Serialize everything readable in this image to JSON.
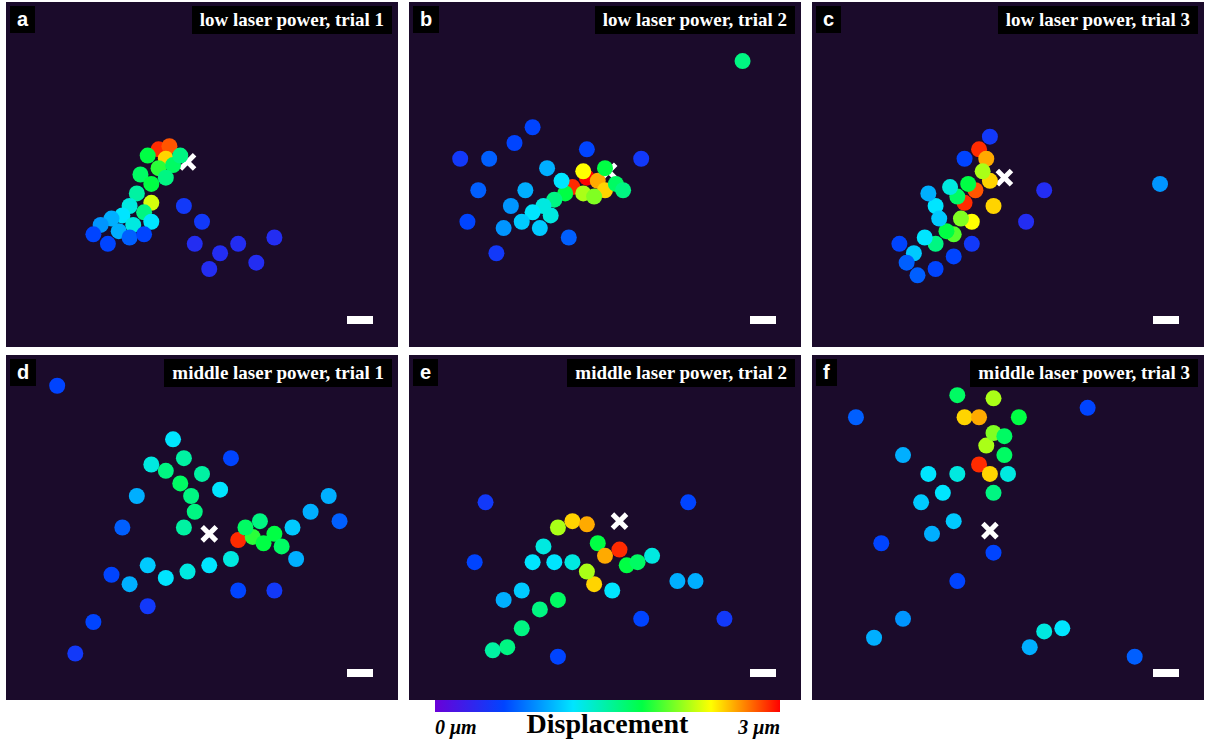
{
  "chart_data": [
    {
      "type": "scatter",
      "letter": "a",
      "title": "low laser power, trial 1",
      "marker": "circle",
      "grid": false,
      "tick_labels": false,
      "xlim": [
        0,
        100
      ],
      "ylim": [
        0,
        100
      ],
      "x": [
        38,
        41,
        40,
        36,
        35,
        38,
        42,
        44,
        33,
        36,
        40,
        32,
        34,
        30,
        28,
        31,
        36,
        25,
        22,
        27,
        20,
        24,
        30,
        34,
        45,
        50,
        55,
        60,
        65,
        70,
        48,
        52
      ],
      "y": [
        58,
        59,
        55,
        41,
        56,
        52,
        53,
        56,
        50,
        47,
        49,
        44,
        38,
        40,
        37,
        34,
        35,
        36,
        34,
        32,
        31,
        28,
        30,
        31,
        40,
        35,
        25,
        28,
        22,
        30,
        28,
        20
      ],
      "values": [
        2.9,
        2.8,
        2.5,
        2.3,
        1.8,
        1.9,
        1.7,
        1.6,
        1.7,
        1.8,
        1.6,
        1.5,
        1.6,
        1.3,
        1.2,
        1.3,
        1.2,
        1.0,
        0.9,
        1.0,
        0.6,
        0.6,
        0.7,
        0.6,
        0.5,
        0.5,
        0.4,
        0.4,
        0.4,
        0.4,
        0.4,
        0.4
      ],
      "laser_spot": {
        "x": 46,
        "y": 54,
        "marker": "cross"
      }
    },
    {
      "type": "scatter",
      "letter": "b",
      "title": "low laser power, trial 2",
      "marker": "circle",
      "grid": false,
      "tick_labels": false,
      "xlim": [
        0,
        100
      ],
      "ylim": [
        0,
        100
      ],
      "x": [
        45,
        41,
        48,
        50,
        44,
        44,
        47,
        39,
        50,
        53,
        55,
        36,
        88,
        33,
        30,
        35,
        27,
        32,
        38,
        34,
        28,
        24,
        22,
        15,
        18,
        25,
        12,
        40,
        45,
        30,
        20,
        60,
        10
      ],
      "y": [
        49,
        46,
        48,
        45,
        51,
        44,
        43,
        44,
        52,
        47,
        45,
        42,
        86,
        40,
        38,
        37,
        35,
        33,
        48,
        52,
        45,
        40,
        33,
        45,
        55,
        60,
        35,
        30,
        58,
        65,
        25,
        55,
        55
      ],
      "values": [
        3.0,
        2.9,
        2.6,
        2.5,
        2.4,
        2.2,
        2.1,
        1.8,
        1.8,
        1.7,
        1.6,
        1.6,
        1.6,
        1.3,
        1.2,
        1.3,
        1.1,
        1.1,
        1.2,
        1.0,
        1.0,
        0.9,
        0.9,
        0.7,
        0.7,
        0.6,
        0.6,
        0.7,
        0.6,
        0.6,
        0.5,
        0.5,
        0.5
      ],
      "laser_spot": {
        "x": 51,
        "y": 51,
        "marker": "cross"
      }
    },
    {
      "type": "scatter",
      "letter": "c",
      "title": "low laser power, trial 3",
      "marker": "circle",
      "grid": false,
      "tick_labels": false,
      "xlim": [
        0,
        100
      ],
      "ylim": [
        0,
        100
      ],
      "x": [
        42,
        38,
        41,
        44,
        45,
        46,
        40,
        43,
        37,
        35,
        39,
        36,
        33,
        30,
        34,
        30,
        27,
        24,
        31,
        28,
        22,
        25,
        30,
        20,
        35,
        40,
        38,
        45,
        55,
        60,
        92
      ],
      "y": [
        58,
        41,
        45,
        55,
        48,
        40,
        35,
        51,
        36,
        31,
        47,
        43,
        32,
        28,
        46,
        40,
        30,
        25,
        36,
        44,
        22,
        18,
        20,
        28,
        24,
        28,
        55,
        62,
        35,
        45,
        47
      ],
      "values": [
        2.9,
        2.9,
        2.8,
        2.6,
        2.5,
        2.5,
        2.4,
        2.2,
        2.1,
        2.0,
        1.8,
        1.7,
        1.8,
        1.6,
        1.3,
        1.2,
        1.2,
        1.1,
        1.1,
        1.0,
        0.7,
        0.7,
        0.6,
        0.6,
        0.6,
        0.5,
        0.6,
        0.5,
        0.4,
        0.4,
        0.9
      ],
      "laser_spot": {
        "x": 49,
        "y": 49,
        "marker": "cross"
      }
    },
    {
      "type": "scatter",
      "letter": "d",
      "title": "middle laser power, trial 1",
      "marker": "circle",
      "grid": false,
      "tick_labels": false,
      "xlim": [
        0,
        100
      ],
      "ylim": [
        0,
        100
      ],
      "x": [
        60,
        64,
        67,
        70,
        72,
        62,
        66,
        47,
        44,
        40,
        45,
        50,
        48,
        45,
        36,
        42,
        55,
        58,
        52,
        46,
        40,
        35,
        30,
        75,
        80,
        85,
        76,
        32,
        28,
        25,
        88,
        58,
        60,
        35,
        70,
        20,
        15,
        10
      ],
      "y": [
        46,
        47,
        45,
        48,
        44,
        50,
        52,
        60,
        64,
        68,
        72,
        67,
        55,
        50,
        70,
        78,
        62,
        40,
        38,
        36,
        34,
        38,
        32,
        50,
        55,
        60,
        40,
        60,
        50,
        35,
        52,
        72,
        30,
        25,
        30,
        20,
        10,
        95
      ],
      "values": [
        2.9,
        1.9,
        1.8,
        1.8,
        1.7,
        1.7,
        1.6,
        1.6,
        1.7,
        1.6,
        1.5,
        1.5,
        1.6,
        1.5,
        1.3,
        1.2,
        1.2,
        1.3,
        1.2,
        1.3,
        1.2,
        1.1,
        1.0,
        1.1,
        1.0,
        1.0,
        1.0,
        1.0,
        0.7,
        0.6,
        0.7,
        0.6,
        0.6,
        0.5,
        0.5,
        0.6,
        0.5,
        0.6
      ],
      "laser_spot": {
        "x": 52,
        "y": 48,
        "marker": "cross"
      }
    },
    {
      "type": "scatter",
      "letter": "e",
      "title": "middle laser power, trial 2",
      "marker": "circle",
      "grid": false,
      "tick_labels": false,
      "xlim": [
        0,
        100
      ],
      "ylim": [
        0,
        100
      ],
      "x": [
        41,
        45,
        37,
        48,
        50,
        54,
        47,
        45,
        56,
        59,
        63,
        37,
        32,
        27,
        23,
        19,
        33,
        30,
        36,
        41,
        52,
        27,
        70,
        75,
        22,
        14,
        73,
        17,
        60,
        83,
        37
      ],
      "y": [
        52,
        51,
        50,
        45,
        41,
        43,
        32,
        36,
        38,
        39,
        41,
        27,
        24,
        18,
        12,
        11,
        44,
        39,
        39,
        39,
        30,
        30,
        33,
        33,
        27,
        39,
        58,
        58,
        21,
        21,
        9
      ],
      "values": [
        2.5,
        2.6,
        2.2,
        1.8,
        2.6,
        2.9,
        2.5,
        2.2,
        1.8,
        1.7,
        1.3,
        1.7,
        1.6,
        1.6,
        1.6,
        1.5,
        1.3,
        1.2,
        1.2,
        1.3,
        1.2,
        1.1,
        1.0,
        1.0,
        1.0,
        0.6,
        0.6,
        0.5,
        0.6,
        0.5,
        0.6
      ],
      "laser_spot": {
        "x": 54,
        "y": 52,
        "marker": "cross"
      }
    },
    {
      "type": "scatter",
      "letter": "f",
      "title": "middle laser power, trial 3",
      "marker": "circle",
      "grid": false,
      "tick_labels": false,
      "xlim": [
        0,
        100
      ],
      "ylim": [
        0,
        100
      ],
      "x": [
        38,
        42,
        42,
        45,
        44,
        46,
        53,
        49,
        36,
        46,
        49,
        46,
        50,
        28,
        32,
        26,
        35,
        29,
        36,
        21,
        60,
        65,
        56,
        13,
        21,
        85,
        8,
        72,
        46,
        36,
        15
      ],
      "y": [
        85,
        85,
        70,
        67,
        76,
        80,
        85,
        79,
        92,
        91,
        73,
        61,
        67,
        67,
        61,
        58,
        52,
        48,
        67,
        73,
        17,
        18,
        12,
        15,
        21,
        9,
        85,
        88,
        42,
        33,
        45
      ],
      "values": [
        2.5,
        2.6,
        2.9,
        2.5,
        2.2,
        2.1,
        1.8,
        1.7,
        1.7,
        2.2,
        1.7,
        1.6,
        1.3,
        1.2,
        1.2,
        1.1,
        1.1,
        1.0,
        1.3,
        1.0,
        1.3,
        1.2,
        1.0,
        1.0,
        0.9,
        0.7,
        0.7,
        0.6,
        0.6,
        0.6,
        0.6
      ],
      "laser_spot": {
        "x": 45,
        "y": 49,
        "marker": "cross"
      }
    }
  ],
  "colorbar": {
    "label": "Displacement",
    "range": [
      0,
      3
    ],
    "ticks": [
      {
        "value": 0,
        "label": "0 μm"
      },
      {
        "value": 3,
        "label": "3 μm"
      }
    ],
    "colors": [
      "#6a00d8",
      "#0044ff",
      "#00e5ff",
      "#00ff44",
      "#ffff00",
      "#ff0000"
    ]
  }
}
